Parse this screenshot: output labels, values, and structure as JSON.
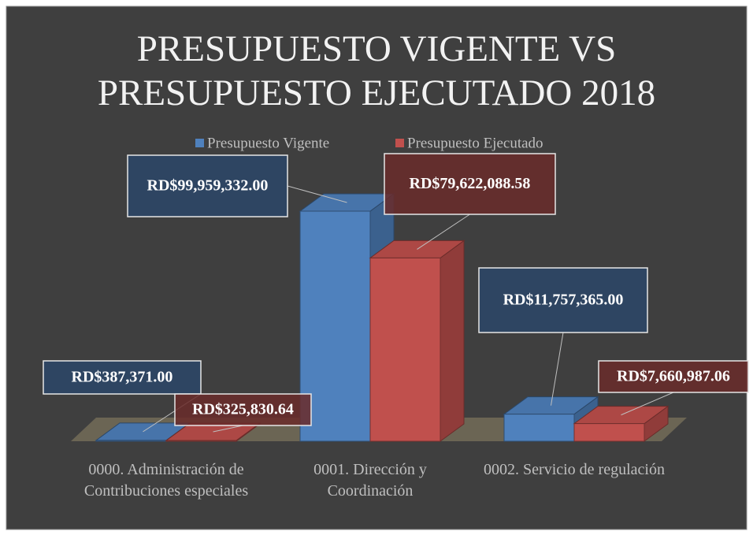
{
  "chart_data": {
    "type": "bar",
    "title": "PRESUPUESTO VIGENTE VS PRESUPUESTO EJECUTADO 2018",
    "categories": [
      "0000. Administración de Contribuciones especiales",
      "0001. Dirección y Coordinación",
      "0002. Servicio de regulación"
    ],
    "series": [
      {
        "name": "Presupuesto Vigente",
        "color": "#4f81bd",
        "values": [
          387371,
          99959332,
          11757365
        ],
        "value_labels": [
          "RD$387,371.00",
          "RD$99,959,332.00",
          "RD$11,757,365.00"
        ]
      },
      {
        "name": "Presupuesto Ejecutado",
        "color": "#c0504d",
        "values": [
          325830.64,
          79622088.58,
          7660987.06
        ],
        "value_labels": [
          "RD$325,830.64",
          "RD$79,622,088.58",
          "RD$7,660,987.06"
        ]
      }
    ],
    "legend": "top"
  }
}
